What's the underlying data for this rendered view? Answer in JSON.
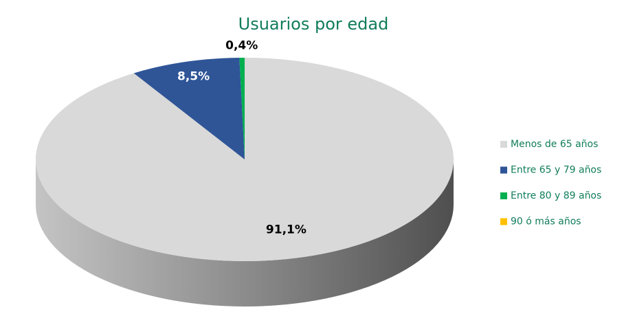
{
  "chart_data": {
    "type": "pie3d",
    "title": "Usuarios por edad",
    "categories": [
      "Menos de 65 años",
      "Entre 65 y 79 años",
      "Entre 80 y 89 años",
      "90 ó más años"
    ],
    "values": [
      91.1,
      8.5,
      0.4,
      0
    ],
    "value_labels": [
      "91,1%",
      "8,5%",
      "0,4%",
      null
    ],
    "colors": [
      "#d9d9d9",
      "#2f5597",
      "#00b050",
      "#ffc000"
    ],
    "legend": "right"
  }
}
